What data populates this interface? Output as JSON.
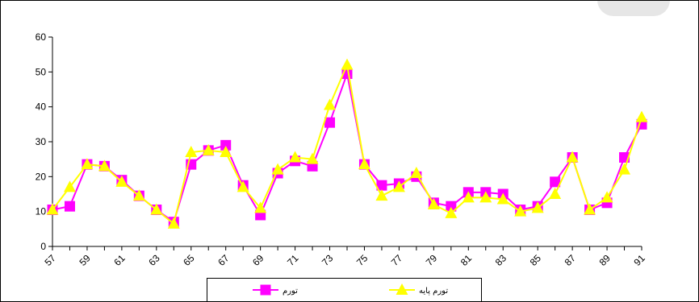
{
  "chart_data": {
    "type": "line",
    "title": "",
    "xlabel": "",
    "ylabel": "",
    "ylim": [
      0,
      60
    ],
    "yticks": [
      0,
      10,
      20,
      30,
      40,
      50,
      60
    ],
    "xticks": [
      57,
      59,
      61,
      63,
      65,
      67,
      69,
      71,
      73,
      75,
      77,
      79,
      81,
      83,
      85,
      87,
      89,
      91
    ],
    "x": [
      57,
      58,
      59,
      60,
      61,
      62,
      63,
      64,
      65,
      66,
      67,
      68,
      69,
      70,
      71,
      72,
      73,
      74,
      75,
      76,
      77,
      78,
      79,
      80,
      81,
      82,
      83,
      84,
      85,
      86,
      87,
      88,
      89,
      90,
      91
    ],
    "grid": false,
    "legend_position": "bottom",
    "series": [
      {
        "name": "تورم",
        "color": "#ff00ff",
        "marker": "square",
        "values": [
          10.5,
          11.5,
          23.5,
          23,
          19,
          14.5,
          10.5,
          7,
          23.5,
          27.5,
          29,
          17.5,
          9,
          21,
          24.5,
          23,
          35.5,
          49.5,
          23.5,
          17.5,
          18,
          20,
          12.5,
          11.5,
          15.5,
          15.5,
          15,
          10.5,
          11.5,
          18.5,
          25.5,
          10.5,
          12.5,
          25.5,
          35
        ]
      },
      {
        "name": "تورم پایه",
        "color": "#ffff00",
        "marker": "triangle",
        "values": [
          10.5,
          17,
          23.5,
          23,
          18.5,
          14.5,
          10.5,
          6.5,
          27,
          27.5,
          27,
          17,
          11,
          22,
          25.5,
          25,
          40.5,
          52,
          23.5,
          14.5,
          17,
          21,
          12,
          9.5,
          14,
          14,
          13.5,
          10,
          11,
          15,
          25.5,
          10.5,
          14,
          22,
          37
        ]
      }
    ]
  }
}
